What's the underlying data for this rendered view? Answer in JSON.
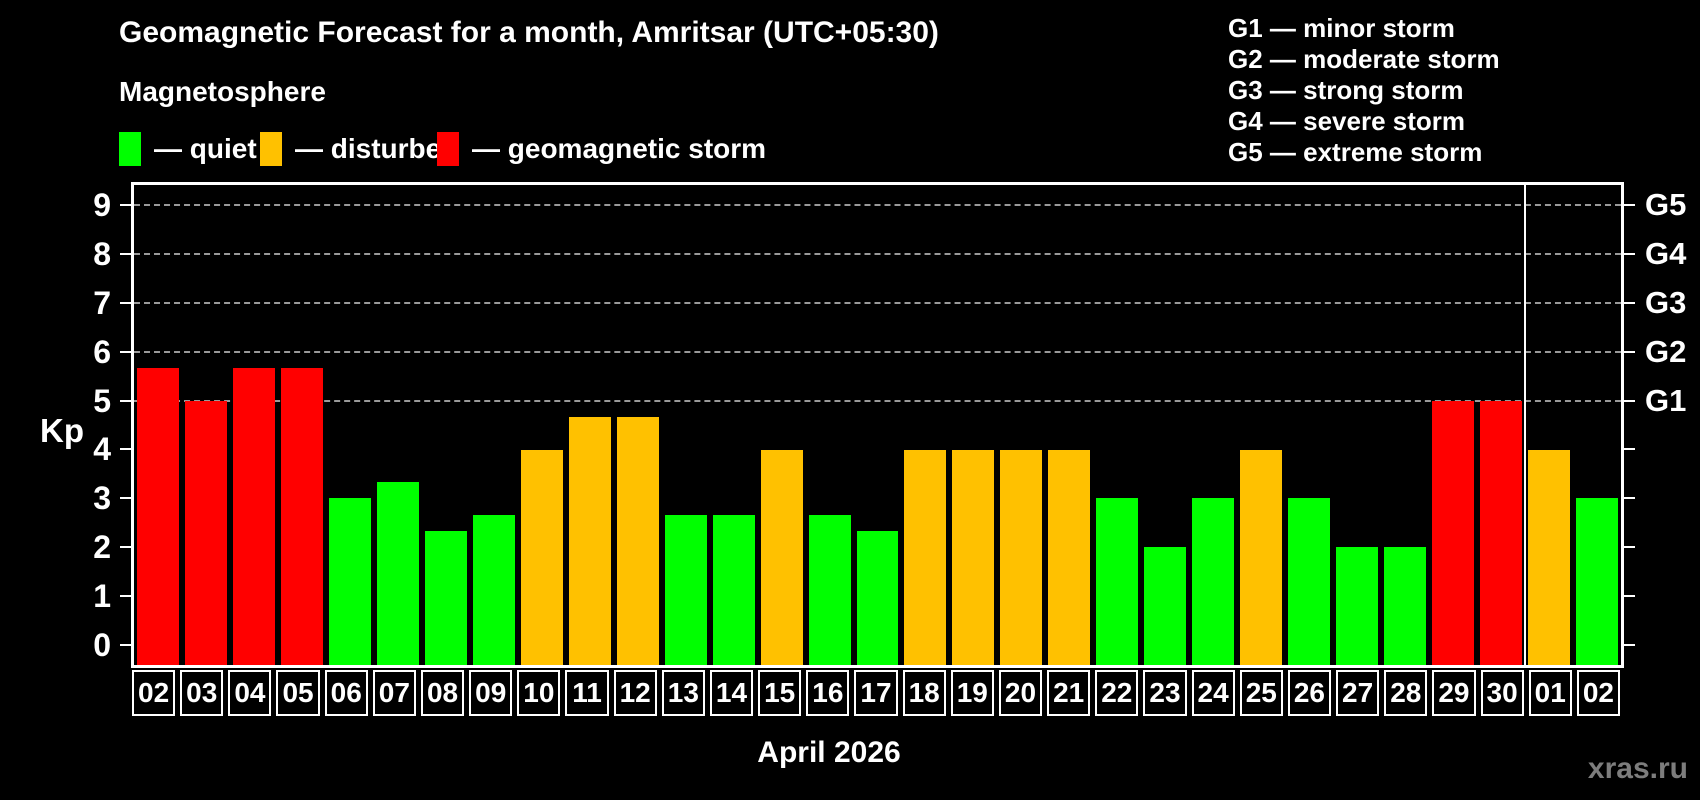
{
  "title": "Geomagnetic Forecast for a month, Amritsar (UTC+05:30)",
  "subtitle": "Magnetosphere",
  "legend": {
    "items": [
      {
        "name": "quiet",
        "label": "— quiet",
        "color": "#00ff00"
      },
      {
        "name": "disturbed",
        "label": "— disturbed",
        "color": "#ffc100"
      },
      {
        "name": "storm",
        "label": "— geomagnetic storm",
        "color": "#ff0000"
      }
    ]
  },
  "g_legend": [
    "G1 — minor storm",
    "G2 — moderate storm",
    "G3 — strong storm",
    "G4 — severe storm",
    "G5 — extreme storm"
  ],
  "axes": {
    "kp_label": "Kp",
    "y_ticks": [
      0,
      1,
      2,
      3,
      4,
      5,
      6,
      7,
      8,
      9
    ],
    "g_labels": [
      {
        "value": 5,
        "label": "G1"
      },
      {
        "value": 6,
        "label": "G2"
      },
      {
        "value": 7,
        "label": "G3"
      },
      {
        "value": 8,
        "label": "G4"
      },
      {
        "value": 9,
        "label": "G5"
      }
    ]
  },
  "watermark": "xras.ru",
  "chart_data": {
    "type": "bar",
    "title": "Geomagnetic Forecast for a month, Amritsar (UTC+05:30)",
    "xlabel": "April 2026",
    "ylabel": "Kp",
    "ylim": [
      -0.4,
      9.4
    ],
    "gridline_values": [
      5,
      6,
      7,
      8,
      9
    ],
    "grid_color": "#9a9a9a",
    "month_separator_after_index": 28,
    "status_colors": {
      "quiet": "#00ff00",
      "disturbed": "#ffc100",
      "storm": "#ff0000"
    },
    "categories": [
      "02",
      "03",
      "04",
      "05",
      "06",
      "07",
      "08",
      "09",
      "10",
      "11",
      "12",
      "13",
      "14",
      "15",
      "16",
      "17",
      "18",
      "19",
      "20",
      "21",
      "22",
      "23",
      "24",
      "25",
      "26",
      "27",
      "28",
      "29",
      "30",
      "01",
      "02"
    ],
    "bars": [
      {
        "day": "02",
        "kp": 5.67,
        "status": "storm"
      },
      {
        "day": "03",
        "kp": 5.0,
        "status": "storm"
      },
      {
        "day": "04",
        "kp": 5.67,
        "status": "storm"
      },
      {
        "day": "05",
        "kp": 5.67,
        "status": "storm"
      },
      {
        "day": "06",
        "kp": 3.0,
        "status": "quiet"
      },
      {
        "day": "07",
        "kp": 3.33,
        "status": "quiet"
      },
      {
        "day": "08",
        "kp": 2.33,
        "status": "quiet"
      },
      {
        "day": "09",
        "kp": 2.67,
        "status": "quiet"
      },
      {
        "day": "10",
        "kp": 4.0,
        "status": "disturbed"
      },
      {
        "day": "11",
        "kp": 4.67,
        "status": "disturbed"
      },
      {
        "day": "12",
        "kp": 4.67,
        "status": "disturbed"
      },
      {
        "day": "13",
        "kp": 2.67,
        "status": "quiet"
      },
      {
        "day": "14",
        "kp": 2.67,
        "status": "quiet"
      },
      {
        "day": "15",
        "kp": 4.0,
        "status": "disturbed"
      },
      {
        "day": "16",
        "kp": 2.67,
        "status": "quiet"
      },
      {
        "day": "17",
        "kp": 2.33,
        "status": "quiet"
      },
      {
        "day": "18",
        "kp": 4.0,
        "status": "disturbed"
      },
      {
        "day": "19",
        "kp": 4.0,
        "status": "disturbed"
      },
      {
        "day": "20",
        "kp": 4.0,
        "status": "disturbed"
      },
      {
        "day": "21",
        "kp": 4.0,
        "status": "disturbed"
      },
      {
        "day": "22",
        "kp": 3.0,
        "status": "quiet"
      },
      {
        "day": "23",
        "kp": 2.0,
        "status": "quiet"
      },
      {
        "day": "24",
        "kp": 3.0,
        "status": "quiet"
      },
      {
        "day": "25",
        "kp": 4.0,
        "status": "disturbed"
      },
      {
        "day": "26",
        "kp": 3.0,
        "status": "quiet"
      },
      {
        "day": "27",
        "kp": 2.0,
        "status": "quiet"
      },
      {
        "day": "28",
        "kp": 2.0,
        "status": "quiet"
      },
      {
        "day": "29",
        "kp": 5.0,
        "status": "storm"
      },
      {
        "day": "30",
        "kp": 5.0,
        "status": "storm"
      },
      {
        "day": "01",
        "kp": 4.0,
        "status": "disturbed"
      },
      {
        "day": "02",
        "kp": 3.0,
        "status": "quiet"
      }
    ]
  }
}
